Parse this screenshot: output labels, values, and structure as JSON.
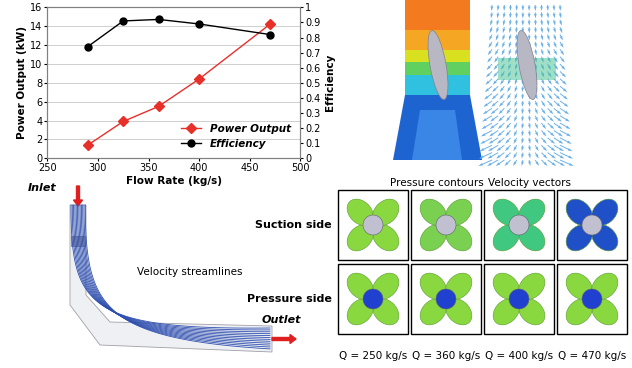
{
  "chart_data": {
    "type": "line",
    "x": [
      290,
      325,
      360,
      400,
      470
    ],
    "series": [
      {
        "name": "Power Output",
        "color": "#e8302a",
        "marker": "diamond",
        "line_style": "solid",
        "values": [
          1.4,
          3.9,
          5.5,
          8.4,
          14.2
        ]
      },
      {
        "name": "Efficiency",
        "color": "#000000",
        "marker": "circle",
        "line_style": "solid",
        "axis": "y2",
        "values": [
          0.74,
          0.91,
          0.92,
          0.89,
          0.82
        ]
      }
    ],
    "x_label": "Flow Rate (kg/s)",
    "y_label": "Power Output (kW)",
    "y2_label": "Efficiency",
    "xlim": [
      250,
      500
    ],
    "xticks": [
      250,
      300,
      350,
      400,
      450,
      500
    ],
    "ylim": [
      0,
      16
    ],
    "yticks": [
      0,
      2,
      4,
      6,
      8,
      10,
      12,
      14,
      16
    ],
    "y2lim": [
      0,
      1
    ],
    "y2ticks": [
      0,
      0.1,
      0.2,
      0.3,
      0.4,
      0.5,
      0.6,
      0.7,
      0.8,
      0.9,
      1
    ],
    "grid": true,
    "legend": "lower right"
  },
  "diagram": {
    "pressure_contours": "Pressure contours",
    "velocity_vectors": "Velocity vectors",
    "rows": [
      "Suction side",
      "Pressure side"
    ],
    "columns": [
      "Q = 250 kg/s",
      "Q = 360 kg/s",
      "Q = 400 kg/s",
      "Q = 470 kg/s"
    ],
    "inlet": "Inlet",
    "outlet": "Outlet",
    "streamlines": "Velocity streamlines"
  }
}
